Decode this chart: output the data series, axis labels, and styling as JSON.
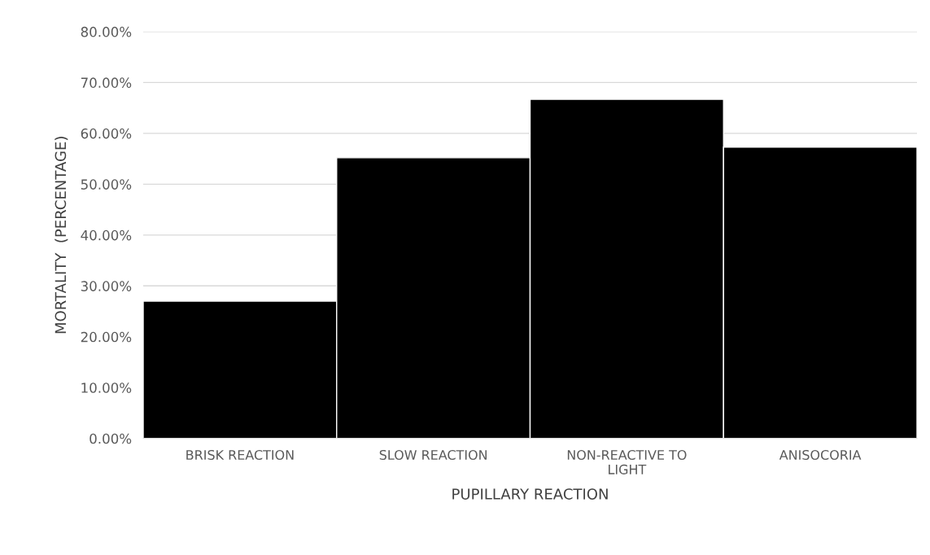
{
  "chart_data": {
    "type": "bar",
    "xlabel": "PUPILLARY REACTION",
    "ylabel": "MORTALITY  (PERCENTAGE)",
    "categories": [
      "BRISK REACTION",
      "SLOW REACTION",
      "NON-REACTIVE TO\nLIGHT",
      "ANISOCORIA"
    ],
    "values": [
      27.0,
      55.2,
      66.7,
      57.3
    ],
    "color": "#000000",
    "ylim": [
      0,
      80
    ],
    "yticks": [
      {
        "value": 0,
        "label": "0.00%"
      },
      {
        "value": 10,
        "label": "10.00%"
      },
      {
        "value": 20,
        "label": "20.00%"
      },
      {
        "value": 30,
        "label": "30.00%"
      },
      {
        "value": 40,
        "label": "40.00%"
      },
      {
        "value": 50,
        "label": "50.00%"
      },
      {
        "value": 60,
        "label": "60.00%"
      },
      {
        "value": 70,
        "label": "70.00%"
      },
      {
        "value": 80,
        "label": "80.00%"
      }
    ],
    "grid": "y"
  }
}
